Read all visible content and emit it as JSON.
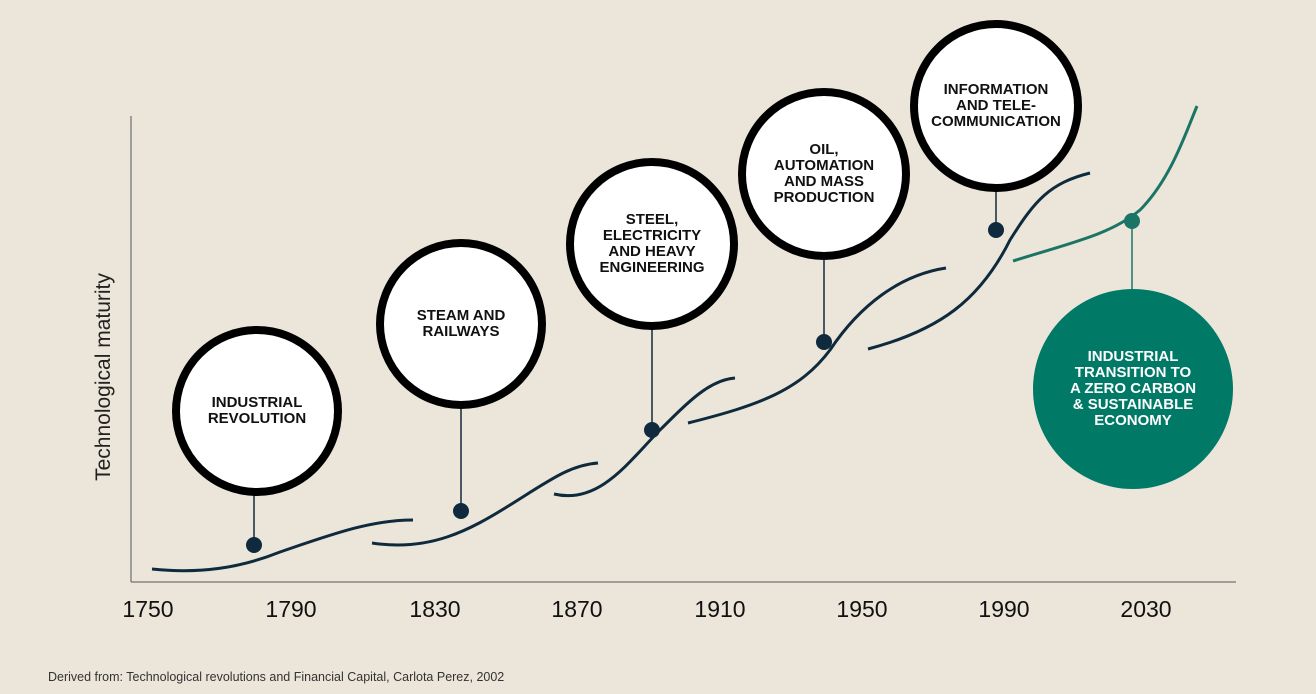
{
  "title": "",
  "y_axis_label": "Technological maturity",
  "x_axis_ticks": [
    "1750",
    "1790",
    "1830",
    "1870",
    "1910",
    "1950",
    "1990",
    "2030"
  ],
  "revolutions": [
    {
      "label": "INDUSTRIAL\nREVOLUTION"
    },
    {
      "label": "STEAM AND\nRAILWAYS"
    },
    {
      "label": "STEEL,\nELECTRICITY\nAND HEAVY\nENGINEERING"
    },
    {
      "label": "OIL,\nAUTOMATION\nAND MASS\nPRODUCTION"
    },
    {
      "label": "INFORMATION\nAND TELE-\nCOMMUNICATION"
    },
    {
      "label": "INDUSTRIAL\nTRANSITION TO\nA ZERO CARBON\n& SUSTAINABLE\nECONOMY"
    }
  ],
  "colors": {
    "background": "#ece6da",
    "curve": "#0f2a3d",
    "future_curve": "#1b7566",
    "future_bubble": "#007a67",
    "bubble_border": "#000000"
  },
  "source": "Derived from: Technological revolutions and Financial Capital, Carlota Perez, 2002"
}
